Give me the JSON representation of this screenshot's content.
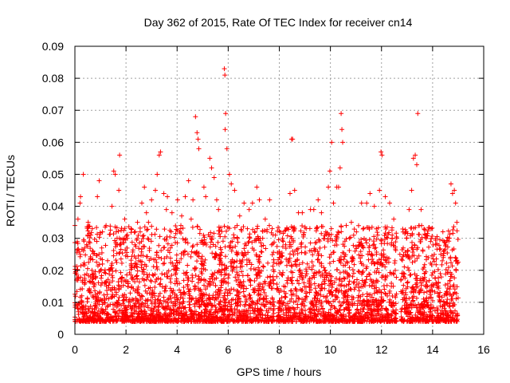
{
  "chart_data": {
    "type": "scatter",
    "title": "Day 362 of 2015, Rate Of TEC Index for receiver cn14",
    "xlabel": "GPS time / hours",
    "ylabel": "ROTI / TECUs",
    "xlim": [
      0,
      16
    ],
    "ylim": [
      0,
      0.09
    ],
    "xticks": [
      "0",
      "2",
      "4",
      "6",
      "8",
      "10",
      "12",
      "14",
      "16"
    ],
    "yticks": [
      "0",
      "0.01",
      "0.02",
      "0.03",
      "0.04",
      "0.05",
      "0.06",
      "0.07",
      "0.08",
      "0.09"
    ],
    "grid": true,
    "marker": "+",
    "color": "#ff0000",
    "series": [
      {
        "name": "ROTI",
        "points": [
          [
            0.0,
            0.034
          ],
          [
            0.12,
            0.036
          ],
          [
            0.2,
            0.041
          ],
          [
            0.22,
            0.043
          ],
          [
            0.33,
            0.05
          ],
          [
            0.52,
            0.035
          ],
          [
            0.68,
            0.033
          ],
          [
            0.88,
            0.043
          ],
          [
            0.95,
            0.048
          ],
          [
            1.08,
            0.032
          ],
          [
            1.22,
            0.034
          ],
          [
            1.45,
            0.04
          ],
          [
            1.52,
            0.051
          ],
          [
            1.58,
            0.05
          ],
          [
            1.75,
            0.056
          ],
          [
            1.72,
            0.045
          ],
          [
            1.95,
            0.036
          ],
          [
            2.2,
            0.033
          ],
          [
            2.45,
            0.035
          ],
          [
            2.62,
            0.041
          ],
          [
            2.72,
            0.046
          ],
          [
            2.8,
            0.038
          ],
          [
            3.0,
            0.042
          ],
          [
            3.15,
            0.045
          ],
          [
            3.22,
            0.05
          ],
          [
            3.3,
            0.056
          ],
          [
            3.35,
            0.057
          ],
          [
            3.48,
            0.044
          ],
          [
            3.62,
            0.043
          ],
          [
            3.8,
            0.038
          ],
          [
            4.02,
            0.042
          ],
          [
            4.18,
            0.037
          ],
          [
            4.32,
            0.043
          ],
          [
            4.45,
            0.048
          ],
          [
            4.62,
            0.042
          ],
          [
            4.72,
            0.068
          ],
          [
            4.78,
            0.063
          ],
          [
            4.82,
            0.061
          ],
          [
            4.85,
            0.058
          ],
          [
            5.05,
            0.046
          ],
          [
            5.12,
            0.043
          ],
          [
            5.28,
            0.055
          ],
          [
            5.35,
            0.052
          ],
          [
            5.45,
            0.049
          ],
          [
            5.62,
            0.039
          ],
          [
            5.85,
            0.083
          ],
          [
            5.87,
            0.081
          ],
          [
            5.9,
            0.069
          ],
          [
            5.88,
            0.064
          ],
          [
            5.95,
            0.058
          ],
          [
            6.05,
            0.05
          ],
          [
            6.12,
            0.047
          ],
          [
            6.25,
            0.045
          ],
          [
            6.45,
            0.037
          ],
          [
            6.62,
            0.041
          ],
          [
            6.82,
            0.039
          ],
          [
            6.95,
            0.041
          ],
          [
            7.12,
            0.046
          ],
          [
            7.22,
            0.042
          ],
          [
            7.45,
            0.036
          ],
          [
            7.62,
            0.042
          ],
          [
            7.72,
            0.033
          ],
          [
            7.85,
            0.031
          ],
          [
            8.02,
            0.024
          ],
          [
            8.15,
            0.029
          ],
          [
            8.3,
            0.033
          ],
          [
            8.42,
            0.044
          ],
          [
            8.48,
            0.061
          ],
          [
            8.52,
            0.061
          ],
          [
            8.6,
            0.045
          ],
          [
            8.75,
            0.038
          ],
          [
            8.9,
            0.038
          ],
          [
            9.05,
            0.033
          ],
          [
            9.22,
            0.039
          ],
          [
            9.35,
            0.039
          ],
          [
            9.52,
            0.042
          ],
          [
            9.65,
            0.038
          ],
          [
            9.82,
            0.032
          ],
          [
            9.92,
            0.046
          ],
          [
            9.98,
            0.051
          ],
          [
            10.05,
            0.06
          ],
          [
            10.12,
            0.041
          ],
          [
            10.25,
            0.046
          ],
          [
            10.32,
            0.046
          ],
          [
            10.38,
            0.052
          ],
          [
            10.42,
            0.069
          ],
          [
            10.45,
            0.064
          ],
          [
            10.48,
            0.06
          ],
          [
            10.62,
            0.034
          ],
          [
            10.82,
            0.035
          ],
          [
            11.02,
            0.032
          ],
          [
            11.22,
            0.041
          ],
          [
            11.42,
            0.041
          ],
          [
            11.55,
            0.044
          ],
          [
            11.72,
            0.04
          ],
          [
            11.92,
            0.045
          ],
          [
            11.98,
            0.057
          ],
          [
            12.02,
            0.056
          ],
          [
            12.15,
            0.043
          ],
          [
            12.32,
            0.041
          ],
          [
            12.48,
            0.036
          ],
          [
            12.72,
            0.025
          ],
          [
            12.85,
            0.027
          ],
          [
            12.98,
            0.03
          ],
          [
            13.08,
            0.039
          ],
          [
            13.18,
            0.045
          ],
          [
            13.25,
            0.055
          ],
          [
            13.32,
            0.056
          ],
          [
            13.38,
            0.053
          ],
          [
            13.42,
            0.069
          ],
          [
            13.55,
            0.039
          ],
          [
            13.72,
            0.031
          ],
          [
            13.92,
            0.029
          ],
          [
            14.12,
            0.028
          ],
          [
            14.32,
            0.025
          ],
          [
            14.52,
            0.028
          ],
          [
            14.65,
            0.03
          ],
          [
            14.72,
            0.047
          ],
          [
            14.78,
            0.044
          ],
          [
            14.85,
            0.045
          ],
          [
            14.9,
            0.041
          ],
          [
            14.95,
            0.035
          ],
          [
            0.38,
            0.027
          ],
          [
            0.62,
            0.031
          ],
          [
            1.05,
            0.027
          ],
          [
            1.62,
            0.032
          ],
          [
            2.05,
            0.03
          ],
          [
            2.35,
            0.028
          ],
          [
            2.88,
            0.035
          ],
          [
            3.58,
            0.039
          ],
          [
            4.1,
            0.032
          ],
          [
            4.55,
            0.036
          ],
          [
            5.55,
            0.042
          ],
          [
            6.35,
            0.034
          ],
          [
            6.75,
            0.033
          ],
          [
            7.35,
            0.03
          ],
          [
            8.25,
            0.028
          ],
          [
            8.95,
            0.031
          ],
          [
            9.45,
            0.033
          ],
          [
            10.75,
            0.03
          ],
          [
            11.15,
            0.028
          ],
          [
            11.85,
            0.031
          ],
          [
            12.42,
            0.03
          ],
          [
            13.62,
            0.026
          ],
          [
            14.42,
            0.024
          ]
        ]
      }
    ]
  }
}
